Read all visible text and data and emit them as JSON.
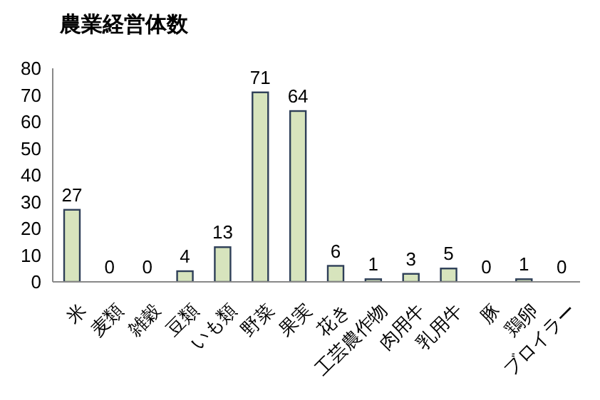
{
  "chart_data": {
    "type": "bar",
    "title": "農業経営体数",
    "categories": [
      "米",
      "麦類",
      "雑穀",
      "豆類",
      "いも類",
      "野菜",
      "果実",
      "花き",
      "工芸農作物",
      "肉用牛",
      "乳用牛",
      "豚",
      "鶏卵",
      "ブロイラー"
    ],
    "values": [
      27,
      0,
      0,
      4,
      13,
      71,
      64,
      6,
      1,
      3,
      5,
      0,
      1,
      0
    ],
    "color": "#d7e4bd",
    "ylim": [
      0,
      80
    ],
    "yticks": [
      0,
      10,
      20,
      30,
      40,
      50,
      60,
      70,
      80
    ],
    "grid": false,
    "legend": false,
    "data_labels": true
  }
}
